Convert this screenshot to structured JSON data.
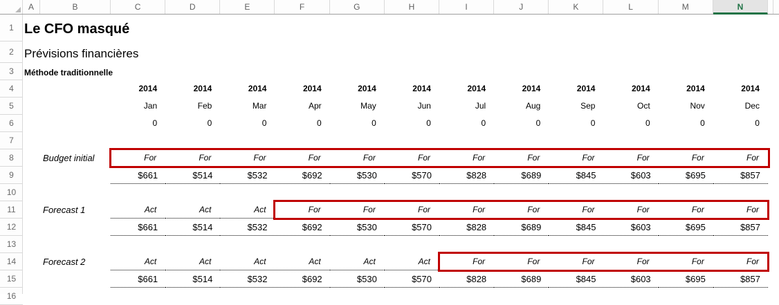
{
  "window": {
    "selected_column_header": "N"
  },
  "grid": {
    "column_letters": [
      "A",
      "B",
      "C",
      "D",
      "E",
      "F",
      "G",
      "H",
      "I",
      "J",
      "K",
      "L",
      "M",
      "N"
    ],
    "row_numbers": [
      "1",
      "2",
      "3",
      "4",
      "5",
      "6",
      "7",
      "8",
      "9",
      "10",
      "11",
      "12",
      "13",
      "14",
      "15",
      "16"
    ]
  },
  "titles": {
    "company": "Le CFO masqué",
    "subtitle": "Prévisions financières",
    "method": "Méthode traditionnelle"
  },
  "columns": {
    "years": [
      "2014",
      "2014",
      "2014",
      "2014",
      "2014",
      "2014",
      "2014",
      "2014",
      "2014",
      "2014",
      "2014",
      "2014"
    ],
    "months": [
      "Jan",
      "Feb",
      "Mar",
      "Apr",
      "May",
      "Jun",
      "Jul",
      "Aug",
      "Sep",
      "Oct",
      "Nov",
      "Dec"
    ],
    "zeros": [
      "0",
      "0",
      "0",
      "0",
      "0",
      "0",
      "0",
      "0",
      "0",
      "0",
      "0",
      "0"
    ]
  },
  "sections": [
    {
      "label": "Budget initial",
      "statuses": [
        "For",
        "For",
        "For",
        "For",
        "For",
        "For",
        "For",
        "For",
        "For",
        "For",
        "For",
        "For"
      ],
      "values": [
        "$661",
        "$514",
        "$532",
        "$692",
        "$530",
        "$570",
        "$828",
        "$689",
        "$845",
        "$603",
        "$695",
        "$857"
      ]
    },
    {
      "label": "Forecast 1",
      "statuses": [
        "Act",
        "Act",
        "Act",
        "For",
        "For",
        "For",
        "For",
        "For",
        "For",
        "For",
        "For",
        "For"
      ],
      "values": [
        "$661",
        "$514",
        "$532",
        "$692",
        "$530",
        "$570",
        "$828",
        "$689",
        "$845",
        "$603",
        "$695",
        "$857"
      ]
    },
    {
      "label": "Forecast 2",
      "statuses": [
        "Act",
        "Act",
        "Act",
        "Act",
        "Act",
        "Act",
        "For",
        "For",
        "For",
        "For",
        "For",
        "For"
      ],
      "values": [
        "$661",
        "$514",
        "$532",
        "$692",
        "$530",
        "$570",
        "$828",
        "$689",
        "$845",
        "$603",
        "$695",
        "$857"
      ]
    }
  ],
  "colors": {
    "accent_green": "#217346",
    "highlight_red": "#c00000",
    "header_text": "#5f5f5f",
    "grid_line": "#d9d9d9",
    "selected_header_bg": "#e4e4e4"
  }
}
